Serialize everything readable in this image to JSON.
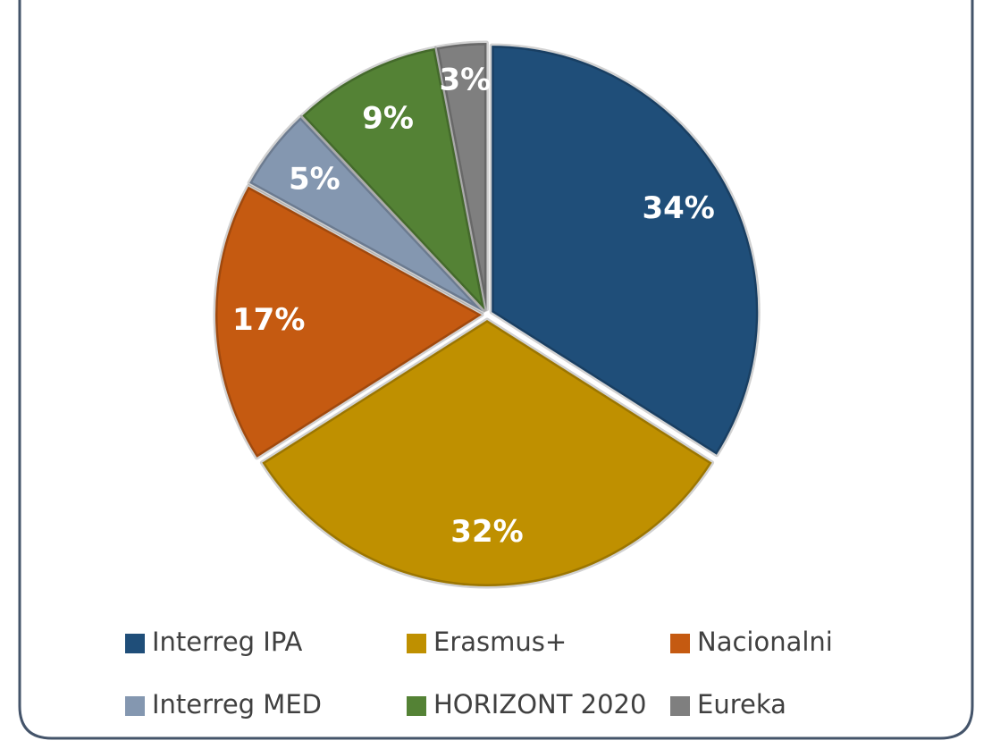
{
  "chart_data": {
    "type": "pie",
    "categories": [
      "Interreg IPA",
      "Erasmus+",
      "Nacionalni",
      "Interreg MED",
      "HORIZONT 2020",
      "Eureka"
    ],
    "values": [
      34,
      32,
      17,
      5,
      9,
      3
    ],
    "value_labels": [
      "34%",
      "32%",
      "17%",
      "5%",
      "9%",
      "3%"
    ],
    "colors": [
      "#1f4e79",
      "#bf9000",
      "#c55a11",
      "#8497b0",
      "#548235",
      "#7f7f7f"
    ],
    "legend": "bottom"
  }
}
